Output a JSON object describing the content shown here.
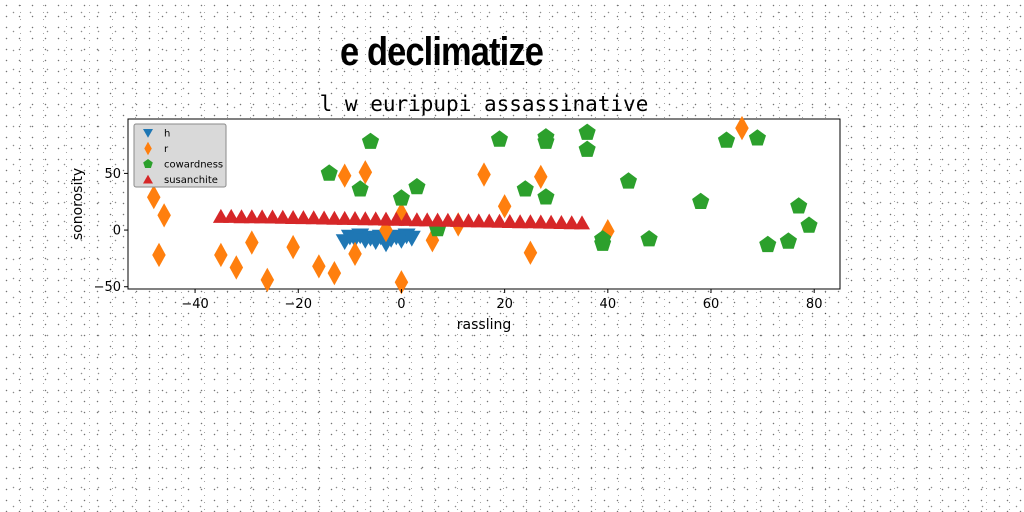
{
  "figure": {
    "title": "e declimatize"
  },
  "chart_data": {
    "type": "scatter",
    "title": "l w euripupi assassinative",
    "xlabel": "rassling",
    "ylabel": "sonorosity",
    "xlim": [
      -53,
      85
    ],
    "ylim": [
      -52,
      98
    ],
    "xticks": [
      -40,
      -20,
      0,
      20,
      40,
      60,
      80
    ],
    "yticks": [
      -50,
      0,
      50
    ],
    "xtick_labels": [
      "−40",
      "−20",
      "0",
      "20",
      "40",
      "60",
      "80"
    ],
    "ytick_labels": [
      "−50",
      "0",
      "50"
    ],
    "grid": false,
    "legend_position": "upper-left",
    "series": [
      {
        "name": "h",
        "marker": "triangle-down",
        "color": "#1f77b4",
        "points": [
          [
            -11,
            -10
          ],
          [
            -10,
            -6
          ],
          [
            -9,
            -8
          ],
          [
            -8,
            -5
          ],
          [
            -7,
            -9
          ],
          [
            -6,
            -7
          ],
          [
            -5,
            -10
          ],
          [
            -4,
            -6
          ],
          [
            -3,
            -12
          ],
          [
            -2,
            -8
          ],
          [
            -1,
            -6
          ],
          [
            0,
            -9
          ],
          [
            1,
            -5
          ],
          [
            2,
            -7
          ]
        ]
      },
      {
        "name": "r",
        "marker": "diamond",
        "color": "#ff7f0e",
        "points": [
          [
            -48,
            29
          ],
          [
            -47,
            -22
          ],
          [
            -46,
            13
          ],
          [
            -35,
            -22
          ],
          [
            -32,
            -33
          ],
          [
            -29,
            -11
          ],
          [
            -26,
            -44
          ],
          [
            -21,
            -15
          ],
          [
            -16,
            -32
          ],
          [
            -13,
            -38
          ],
          [
            -11,
            48
          ],
          [
            -9,
            -21
          ],
          [
            -7,
            51
          ],
          [
            -3,
            0
          ],
          [
            0,
            -46
          ],
          [
            0,
            14
          ],
          [
            6,
            -9
          ],
          [
            11,
            5
          ],
          [
            16,
            49
          ],
          [
            20,
            21
          ],
          [
            25,
            -20
          ],
          [
            27,
            47
          ],
          [
            40,
            -1
          ],
          [
            66,
            90
          ]
        ]
      },
      {
        "name": "cowardness",
        "marker": "pentagon",
        "color": "#2ca02c",
        "points": [
          [
            -14,
            50
          ],
          [
            -8,
            36
          ],
          [
            -6,
            78
          ],
          [
            0,
            28
          ],
          [
            3,
            38
          ],
          [
            7,
            1
          ],
          [
            19,
            80
          ],
          [
            24,
            36
          ],
          [
            28,
            82
          ],
          [
            28,
            78
          ],
          [
            28,
            29
          ],
          [
            36,
            86
          ],
          [
            36,
            71
          ],
          [
            39,
            -8
          ],
          [
            39,
            -12
          ],
          [
            44,
            43
          ],
          [
            48,
            -8
          ],
          [
            58,
            25
          ],
          [
            63,
            79
          ],
          [
            69,
            81
          ],
          [
            71,
            -13
          ],
          [
            75,
            -10
          ],
          [
            77,
            21
          ],
          [
            79,
            4
          ]
        ]
      },
      {
        "name": "susanchite",
        "marker": "triangle-up",
        "color": "#d62728",
        "points": [
          [
            -35,
            12.0
          ],
          [
            -33,
            12.0
          ],
          [
            -31,
            11.7
          ],
          [
            -29,
            11.7
          ],
          [
            -27,
            11.5
          ],
          [
            -25,
            11.4
          ],
          [
            -23,
            11.2
          ],
          [
            -21,
            11.0
          ],
          [
            -19,
            10.9
          ],
          [
            -17,
            10.7
          ],
          [
            -15,
            10.6
          ],
          [
            -13,
            10.4
          ],
          [
            -11,
            10.2
          ],
          [
            -9,
            10.1
          ],
          [
            -7,
            9.9
          ],
          [
            -5,
            9.8
          ],
          [
            -3,
            9.6
          ],
          [
            -1,
            9.4
          ],
          [
            1,
            9.3
          ],
          [
            3,
            9.1
          ],
          [
            5,
            8.9
          ],
          [
            7,
            8.7
          ],
          [
            9,
            8.6
          ],
          [
            11,
            8.4
          ],
          [
            13,
            8.2
          ],
          [
            15,
            8.0
          ],
          [
            17,
            7.9
          ],
          [
            19,
            7.7
          ],
          [
            21,
            7.5
          ],
          [
            23,
            7.3
          ],
          [
            25,
            7.2
          ],
          [
            27,
            7.0
          ],
          [
            29,
            6.8
          ],
          [
            31,
            6.6
          ],
          [
            33,
            6.4
          ],
          [
            35,
            6.2
          ]
        ]
      }
    ]
  }
}
